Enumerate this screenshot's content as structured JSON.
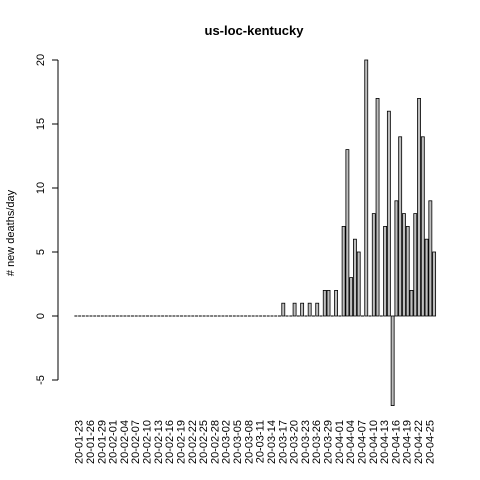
{
  "chart_data": {
    "type": "bar",
    "title": "us-loc-kentucky",
    "xlabel": "",
    "ylabel": "# new deaths/day",
    "ylim": [
      -7,
      20
    ],
    "yticks": [
      -5,
      0,
      5,
      10,
      15,
      20
    ],
    "y_tick_labels": [
      "-5",
      "0",
      "5",
      "10",
      "15",
      "20"
    ],
    "x_tick_labels": [
      "20-01-23",
      "20-01-26",
      "20-01-29",
      "20-02-01",
      "20-02-04",
      "20-02-07",
      "20-02-10",
      "20-02-13",
      "20-02-16",
      "20-02-19",
      "20-02-22",
      "20-02-25",
      "20-02-28",
      "20-03-02",
      "20-03-05",
      "20-03-08",
      "20-03-11",
      "20-03-14",
      "20-03-17",
      "20-03-20",
      "20-03-23",
      "20-03-26",
      "20-03-29",
      "20-04-01",
      "20-04-04",
      "20-04-07",
      "20-04-10",
      "20-04-13",
      "20-04-16",
      "20-04-19",
      "20-04-22",
      "20-04-25"
    ],
    "grid": false,
    "bar_color": "#bebebe",
    "categories": [
      "20-01-22",
      "20-01-23",
      "20-01-24",
      "20-01-25",
      "20-01-26",
      "20-01-27",
      "20-01-28",
      "20-01-29",
      "20-01-30",
      "20-01-31",
      "20-02-01",
      "20-02-02",
      "20-02-03",
      "20-02-04",
      "20-02-05",
      "20-02-06",
      "20-02-07",
      "20-02-08",
      "20-02-09",
      "20-02-10",
      "20-02-11",
      "20-02-12",
      "20-02-13",
      "20-02-14",
      "20-02-15",
      "20-02-16",
      "20-02-17",
      "20-02-18",
      "20-02-19",
      "20-02-20",
      "20-02-21",
      "20-02-22",
      "20-02-23",
      "20-02-24",
      "20-02-25",
      "20-02-26",
      "20-02-27",
      "20-02-28",
      "20-02-29",
      "20-03-01",
      "20-03-02",
      "20-03-03",
      "20-03-04",
      "20-03-05",
      "20-03-06",
      "20-03-07",
      "20-03-08",
      "20-03-09",
      "20-03-10",
      "20-03-11",
      "20-03-12",
      "20-03-13",
      "20-03-14",
      "20-03-15",
      "20-03-16",
      "20-03-17",
      "20-03-18",
      "20-03-19",
      "20-03-20",
      "20-03-21",
      "20-03-22",
      "20-03-23",
      "20-03-24",
      "20-03-25",
      "20-03-26",
      "20-03-27",
      "20-03-28",
      "20-03-29",
      "20-03-30",
      "20-03-31",
      "20-04-01",
      "20-04-02",
      "20-04-03",
      "20-04-04",
      "20-04-05",
      "20-04-06",
      "20-04-07",
      "20-04-08",
      "20-04-09",
      "20-04-10",
      "20-04-11",
      "20-04-12",
      "20-04-13",
      "20-04-14",
      "20-04-15",
      "20-04-16",
      "20-04-17",
      "20-04-18",
      "20-04-19",
      "20-04-20",
      "20-04-21",
      "20-04-22",
      "20-04-23",
      "20-04-24",
      "20-04-25",
      "20-04-26"
    ],
    "values": [
      0,
      0,
      0,
      0,
      0,
      0,
      0,
      0,
      0,
      0,
      0,
      0,
      0,
      0,
      0,
      0,
      0,
      0,
      0,
      0,
      0,
      0,
      0,
      0,
      0,
      0,
      0,
      0,
      0,
      0,
      0,
      0,
      0,
      0,
      0,
      0,
      0,
      0,
      0,
      0,
      0,
      0,
      0,
      0,
      0,
      0,
      0,
      0,
      0,
      0,
      0,
      0,
      0,
      0,
      0,
      1,
      0,
      0,
      1,
      0,
      1,
      0,
      1,
      0,
      1,
      0,
      2,
      2,
      0,
      2,
      0,
      7,
      13,
      3,
      6,
      5,
      0,
      20,
      0,
      8,
      17,
      0,
      7,
      16,
      -7,
      9,
      14,
      8,
      7,
      2,
      8,
      17,
      14,
      6,
      9,
      5
    ]
  }
}
